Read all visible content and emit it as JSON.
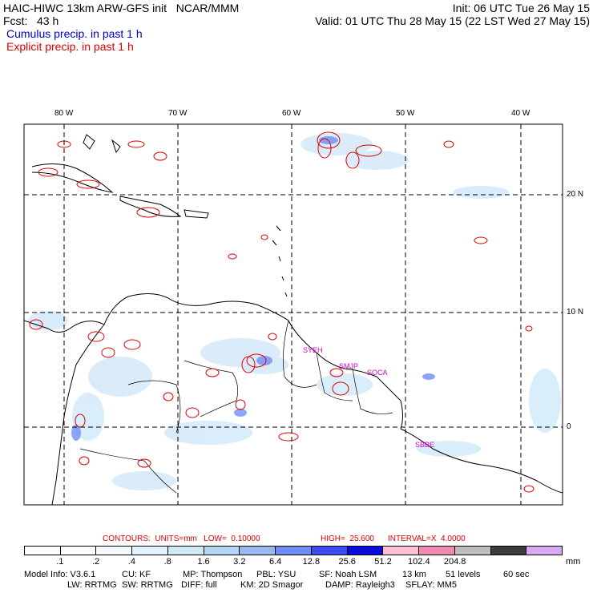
{
  "header": {
    "left_line1": "HAIC-HIWC 13km ARW-GFS init   NCAR/MMM",
    "left_line2": "Fcst:   43 h",
    "right_line1": "Init: 06 UTC Tue 26 May 15",
    "right_line2": "Valid: 01 UTC Thu 28 May 15 (22 LST Wed 27 May 15)",
    "cumulus_label": "Cumulus precip. in past 1 h",
    "explicit_label": "Explicit precip. in past 1 h"
  },
  "map": {
    "lon_labels": [
      "80 W",
      "70 W",
      "60 W",
      "50 W",
      "40 W"
    ],
    "lat_labels": [
      "20 N",
      "10 N",
      "0"
    ],
    "station_labels": [
      "SYEH",
      "SMJP",
      "SOCA",
      "SBBE"
    ]
  },
  "contours": {
    "units_text": "CONTOURS:  UNITS=mm   LOW=  0.10000",
    "high_text": "HIGH=  25.600",
    "interval_text": "INTERVAL=X  4.0000"
  },
  "colorbar": {
    "colors": [
      "#ffffff",
      "#ffffff",
      "#f2f9ff",
      "#e4f3ff",
      "#cfe9f7",
      "#b4d6f5",
      "#9ab8f0",
      "#6e8ef5",
      "#3d4cf0",
      "#0b0bd9",
      "#ffc0d4",
      "#f088b4",
      "#bdbdbd",
      "#3c3c3c",
      "#d8a8f2"
    ],
    "labels": [
      ".1",
      ".2",
      ".4",
      ".8",
      "1.6",
      "3.2",
      "6.4",
      "12.8",
      "25.6",
      "51.2",
      "102.4",
      "204.8"
    ],
    "units": "mm"
  },
  "model_info": {
    "line1": [
      "Model Info: V3.6.1",
      "CU: KF",
      "MP: Thompson",
      "PBL: YSU",
      "SF: Noah LSM",
      "13 km",
      "51 levels",
      "60 sec"
    ],
    "line2": [
      "LW: RRTMG",
      "SW: RRTMG",
      "DIFF: full",
      "KM: 2D Smagor",
      "DAMP: Rayleigh3",
      "SFLAY: MM5"
    ]
  }
}
